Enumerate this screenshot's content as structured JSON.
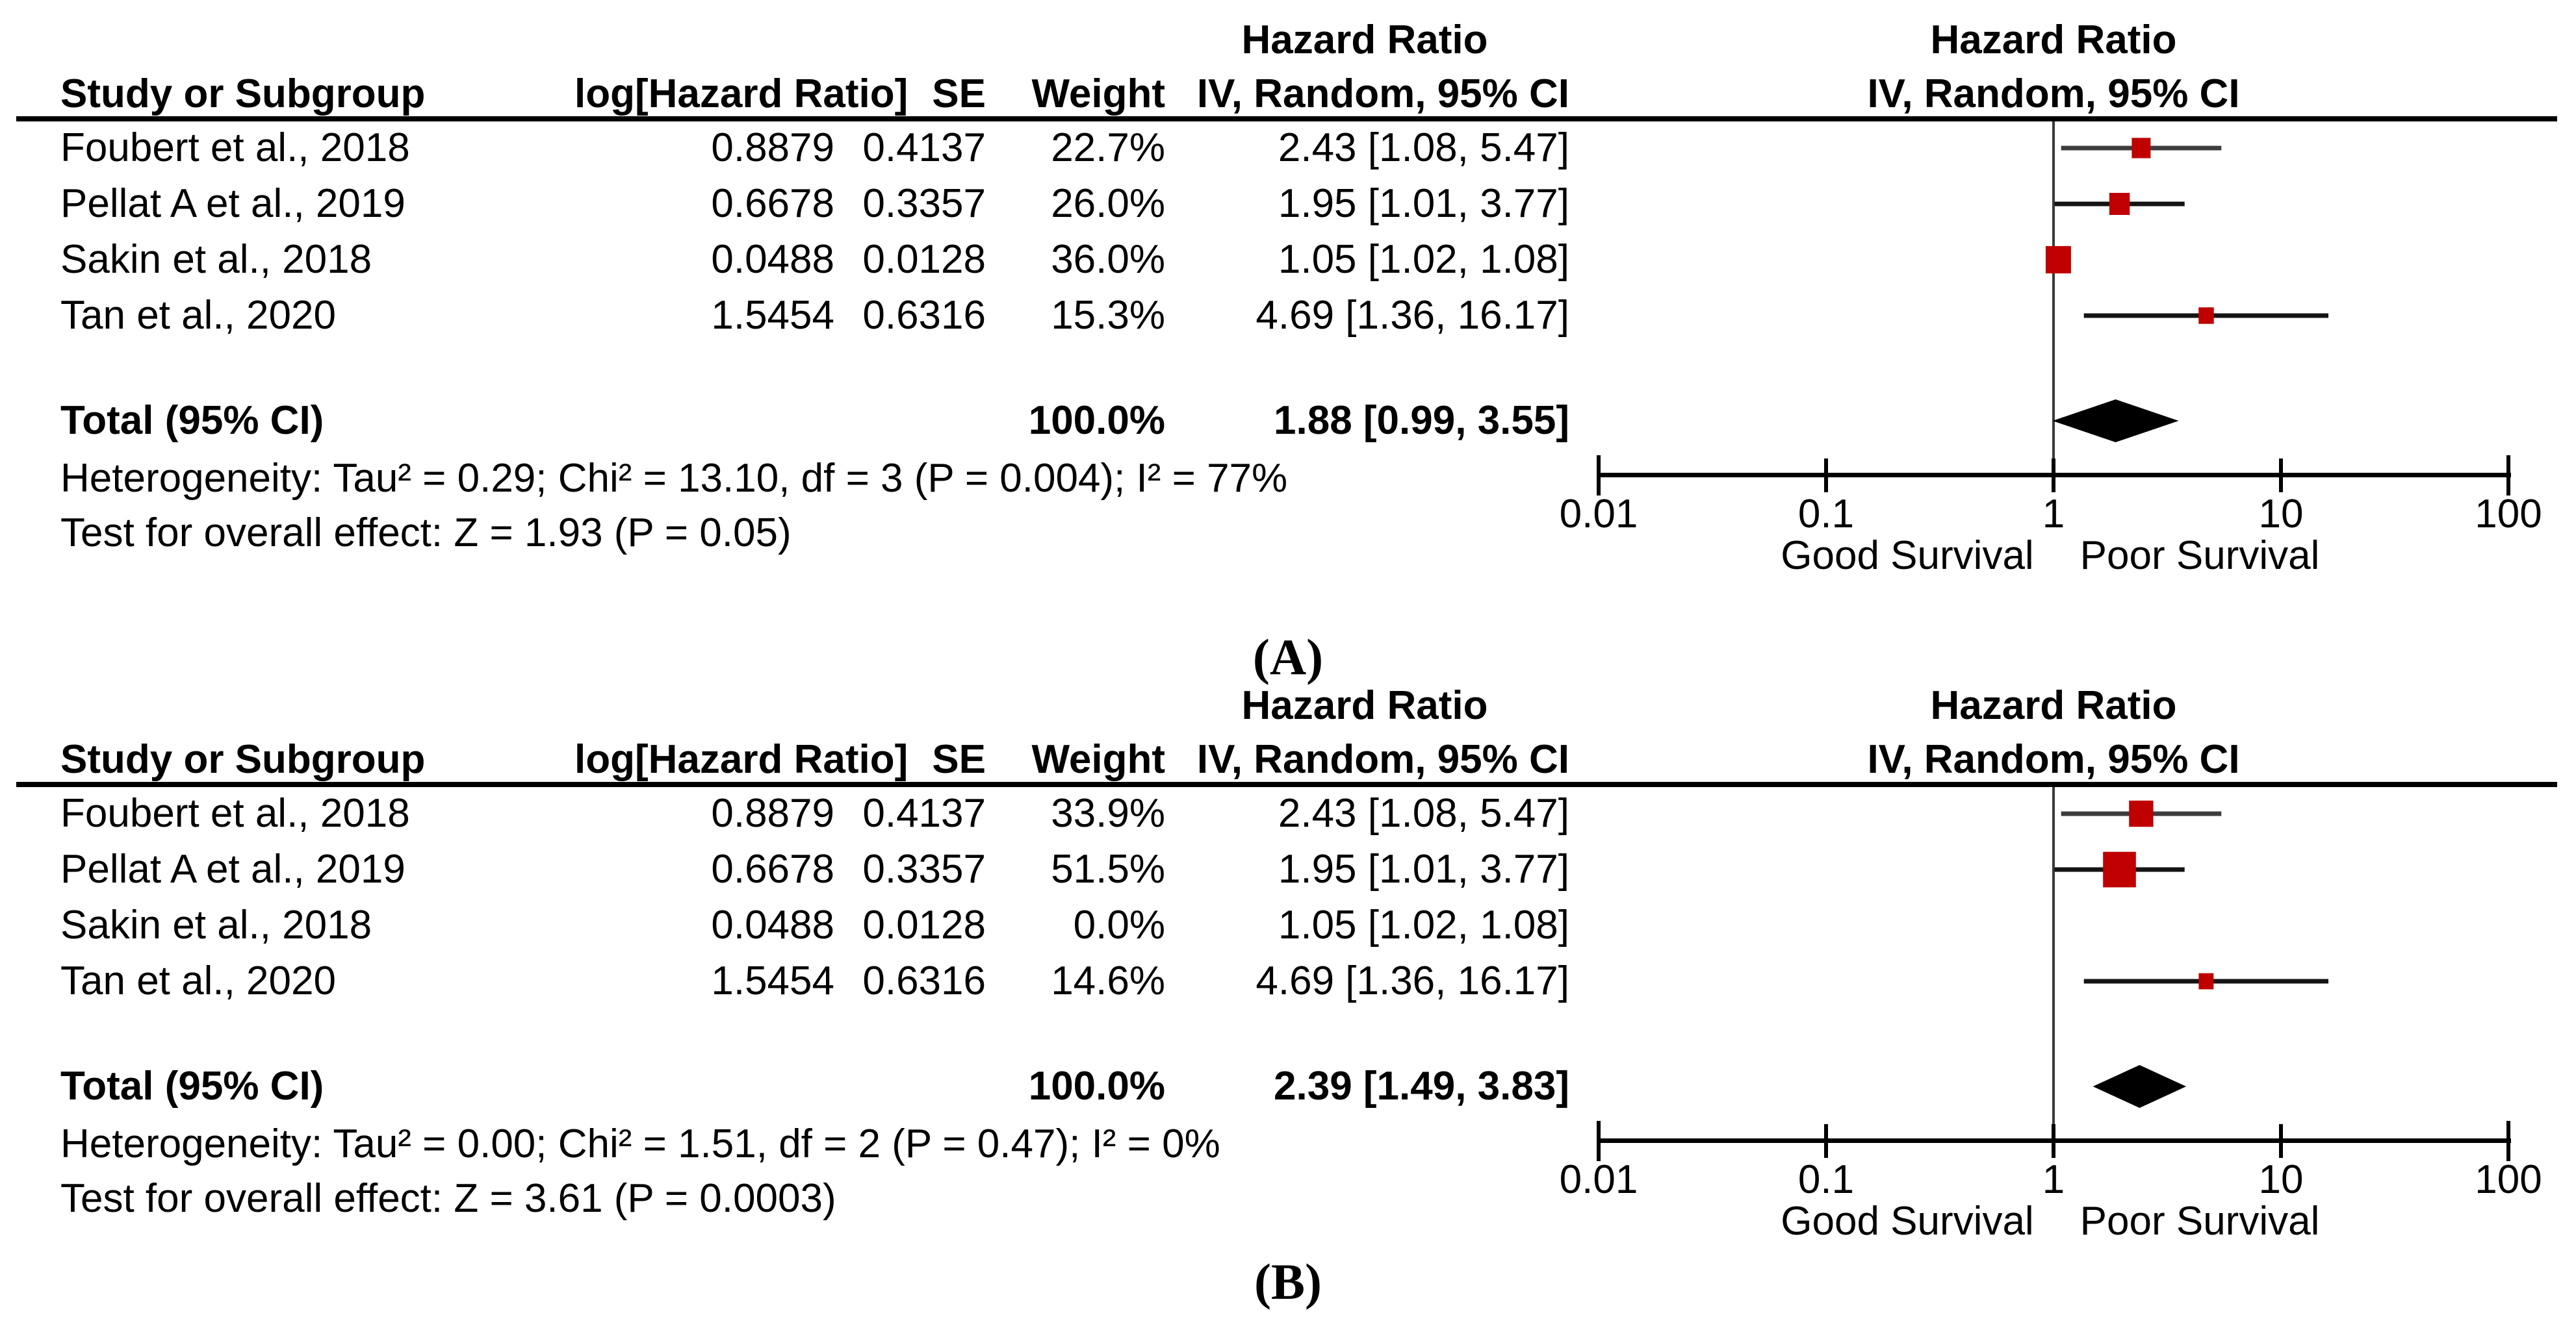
{
  "page": {
    "background": "#ffffff",
    "labels": {
      "panel_a": "(A)",
      "panel_b": "(B)"
    }
  },
  "columns": {
    "study": "Study or Subgroup",
    "log_hr": "log[Hazard Ratio]",
    "se": "SE",
    "weight": "Weight",
    "hazard_ratio": "Hazard Ratio",
    "method_ci": "IV, Random, 95% CI"
  },
  "axis": {
    "scale": "log10",
    "range": [
      0.01,
      100
    ],
    "tick_values": [
      0.01,
      0.1,
      1,
      10,
      100
    ],
    "tick_labels": [
      "0.01",
      "0.1",
      "1",
      "10",
      "100"
    ],
    "null_line": 1,
    "left_label": "Good Survival",
    "right_label": "Poor Survival"
  },
  "colors": {
    "marker_red": "#c00000",
    "ci_line": "#141414",
    "ci_line_first_row": "#3d3d3d",
    "diamond": "#000000",
    "axis_black": "#000000",
    "text": "#000000"
  },
  "chart_data": [
    {
      "type": "forest",
      "panel": "A",
      "effect_measure": "Hazard Ratio",
      "model": "IV, Random, 95% CI",
      "x_axis": {
        "scale": "log10",
        "ticks": [
          0.01,
          0.1,
          1,
          10,
          100
        ],
        "null_line": 1,
        "left_label": "Good Survival",
        "right_label": "Poor Survival"
      },
      "studies": [
        {
          "name": "Foubert et al., 2018",
          "log_hr": "0.8879",
          "se": "0.4137",
          "weight": "22.7%",
          "weight_pct": 22.7,
          "hr_ci_text": "2.43 [1.08, 5.47]",
          "hr": 2.43,
          "ci_low": 1.08,
          "ci_high": 5.47
        },
        {
          "name": "Pellat A et al., 2019",
          "log_hr": "0.6678",
          "se": "0.3357",
          "weight": "26.0%",
          "weight_pct": 26.0,
          "hr_ci_text": "1.95 [1.01, 3.77]",
          "hr": 1.95,
          "ci_low": 1.01,
          "ci_high": 3.77
        },
        {
          "name": "Sakin et al., 2018",
          "log_hr": "0.0488",
          "se": "0.0128",
          "weight": "36.0%",
          "weight_pct": 36.0,
          "hr_ci_text": "1.05 [1.02, 1.08]",
          "hr": 1.05,
          "ci_low": 1.02,
          "ci_high": 1.08
        },
        {
          "name": "Tan et al., 2020",
          "log_hr": "1.5454",
          "se": "0.6316",
          "weight": "15.3%",
          "weight_pct": 15.3,
          "hr_ci_text": "4.69 [1.36, 16.17]",
          "hr": 4.69,
          "ci_low": 1.36,
          "ci_high": 16.17
        }
      ],
      "total": {
        "label": "Total (95% CI)",
        "weight": "100.0%",
        "hr_ci_text": "1.88 [0.99, 3.55]",
        "hr": 1.88,
        "ci_low": 0.99,
        "ci_high": 3.55
      },
      "heterogeneity": "Heterogeneity: Tau² = 0.29; Chi² = 13.10, df = 3 (P = 0.004); I² = 77%",
      "overall_effect": "Test for overall effect: Z = 1.93 (P = 0.05)"
    },
    {
      "type": "forest",
      "panel": "B",
      "effect_measure": "Hazard Ratio",
      "model": "IV, Random, 95% CI",
      "x_axis": {
        "scale": "log10",
        "ticks": [
          0.01,
          0.1,
          1,
          10,
          100
        ],
        "null_line": 1,
        "left_label": "Good Survival",
        "right_label": "Poor Survival"
      },
      "studies": [
        {
          "name": "Foubert et al., 2018",
          "log_hr": "0.8879",
          "se": "0.4137",
          "weight": "33.9%",
          "weight_pct": 33.9,
          "hr_ci_text": "2.43 [1.08, 5.47]",
          "hr": 2.43,
          "ci_low": 1.08,
          "ci_high": 5.47
        },
        {
          "name": "Pellat A et al., 2019",
          "log_hr": "0.6678",
          "se": "0.3357",
          "weight": "51.5%",
          "weight_pct": 51.5,
          "hr_ci_text": "1.95 [1.01, 3.77]",
          "hr": 1.95,
          "ci_low": 1.01,
          "ci_high": 3.77
        },
        {
          "name": "Sakin et al., 2018",
          "log_hr": "0.0488",
          "se": "0.0128",
          "weight": "0.0%",
          "weight_pct": 0.0,
          "hr_ci_text": "1.05 [1.02, 1.08]",
          "hr": 1.05,
          "ci_low": 1.02,
          "ci_high": 1.08
        },
        {
          "name": "Tan et al., 2020",
          "log_hr": "1.5454",
          "se": "0.6316",
          "weight": "14.6%",
          "weight_pct": 14.6,
          "hr_ci_text": "4.69 [1.36, 16.17]",
          "hr": 4.69,
          "ci_low": 1.36,
          "ci_high": 16.17
        }
      ],
      "total": {
        "label": "Total (95% CI)",
        "weight": "100.0%",
        "hr_ci_text": "2.39 [1.49, 3.83]",
        "hr": 2.39,
        "ci_low": 1.49,
        "ci_high": 3.83
      },
      "heterogeneity": "Heterogeneity: Tau² = 0.00; Chi² = 1.51, df = 2 (P = 0.47); I² = 0%",
      "overall_effect": "Test for overall effect: Z = 3.61 (P = 0.0003)"
    }
  ]
}
